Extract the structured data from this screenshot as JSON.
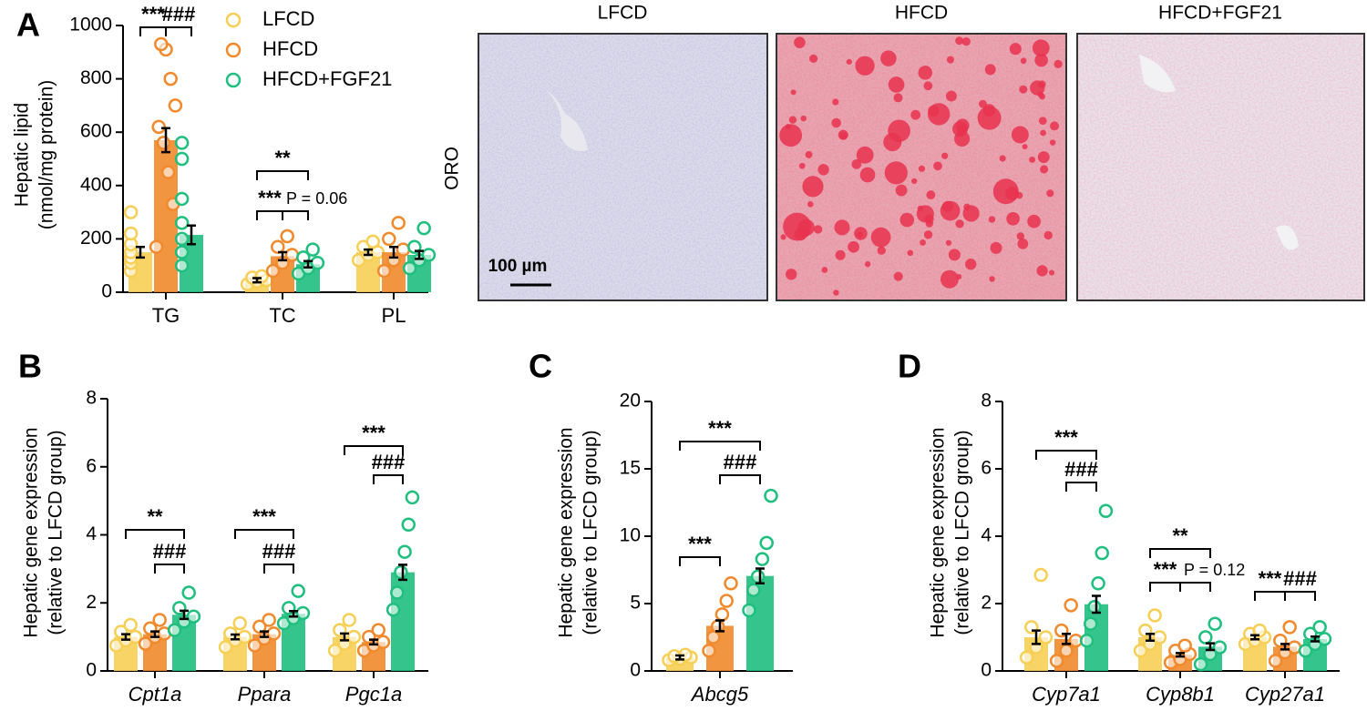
{
  "chart_data": [
    {
      "type": "bar",
      "panel": "A",
      "ylabel": [
        "Hepatic lipid",
        "(nmol/mg protein)"
      ],
      "categories": [
        "TG",
        "TC",
        "PL"
      ],
      "ylim": [
        0,
        1000
      ],
      "yticks": [
        0,
        200,
        400,
        600,
        800,
        1000
      ],
      "series": [
        {
          "name": "LFCD",
          "color": "#f7cf55",
          "values": [
            150,
            45,
            150
          ],
          "errors": [
            20,
            8,
            10
          ],
          "points": [
            [
              80,
              110,
              130,
              150,
              180,
              220,
              300
            ],
            [
              30,
              40,
              45,
              55,
              60
            ],
            [
              120,
              140,
              150,
              170,
              190
            ]
          ]
        },
        {
          "name": "HFCD",
          "color": "#f08a2c",
          "values": [
            570,
            135,
            150
          ],
          "errors": [
            45,
            15,
            20
          ],
          "points": [
            [
              170,
              330,
              450,
              560,
              620,
              700,
              800,
              910,
              930
            ],
            [
              80,
              110,
              140,
              170,
              210
            ],
            [
              80,
              120,
              160,
              200,
              260
            ]
          ]
        },
        {
          "name": "HFCD+FGF21",
          "color": "#1fbf7f",
          "values": [
            215,
            105,
            140
          ],
          "errors": [
            35,
            12,
            15
          ],
          "points": [
            [
              100,
              150,
              200,
              260,
              350,
              500,
              560
            ],
            [
              70,
              90,
              110,
              130,
              160
            ],
            [
              90,
              120,
              140,
              170,
              240
            ]
          ]
        }
      ],
      "annotations": [
        "***",
        "###",
        "**",
        "***",
        "P = 0.06"
      ],
      "legend": true
    },
    {
      "type": "bar",
      "panel": "B",
      "ylabel": [
        "Hepatic gene expression",
        "(relative to LFCD group)"
      ],
      "categories": [
        "Cpt1a",
        "Ppara",
        "Pgc1a"
      ],
      "ylim": [
        0,
        8
      ],
      "yticks": [
        0,
        2,
        4,
        6,
        8
      ],
      "series": [
        {
          "name": "LFCD",
          "color": "#f7cf55",
          "values": [
            1.0,
            1.0,
            1.0
          ],
          "errors": [
            0.08,
            0.07,
            0.1
          ],
          "points": [
            [
              0.75,
              0.9,
              1.0,
              1.15,
              1.35
            ],
            [
              0.7,
              0.9,
              1.0,
              1.1,
              1.4
            ],
            [
              0.6,
              0.8,
              1.0,
              1.2,
              1.5
            ]
          ]
        },
        {
          "name": "HFCD",
          "color": "#f08a2c",
          "values": [
            1.08,
            1.08,
            0.85
          ],
          "errors": [
            0.08,
            0.08,
            0.07
          ],
          "points": [
            [
              0.8,
              1.0,
              1.1,
              1.25,
              1.5
            ],
            [
              0.75,
              0.95,
              1.1,
              1.3,
              1.5
            ],
            [
              0.6,
              0.75,
              0.85,
              1.0,
              1.2
            ]
          ]
        },
        {
          "name": "HFCD+FGF21",
          "color": "#1fbf7f",
          "values": [
            1.65,
            1.68,
            2.9
          ],
          "errors": [
            0.12,
            0.08,
            0.22
          ],
          "points": [
            [
              1.2,
              1.45,
              1.6,
              1.85,
              2.3
            ],
            [
              1.4,
              1.55,
              1.7,
              1.85,
              2.35
            ],
            [
              1.8,
              2.3,
              2.9,
              3.5,
              4.3,
              5.1
            ]
          ]
        }
      ],
      "annotations": [
        "**",
        "###",
        "***",
        "###",
        "***",
        "###"
      ]
    },
    {
      "type": "bar",
      "panel": "C",
      "ylabel": [
        "Hepatic gene expression",
        "(relative to LFCD group)"
      ],
      "categories": [
        "Abcg5"
      ],
      "ylim": [
        0,
        20
      ],
      "yticks": [
        0,
        5,
        10,
        15,
        20
      ],
      "series": [
        {
          "name": "LFCD",
          "color": "#f7cf55",
          "values": [
            1.0
          ],
          "errors": [
            0.15
          ],
          "points": [
            [
              0.8,
              0.9,
              1.0,
              1.1,
              1.2
            ]
          ]
        },
        {
          "name": "HFCD",
          "color": "#f08a2c",
          "values": [
            3.35
          ],
          "errors": [
            0.4
          ],
          "points": [
            [
              1.5,
              2.5,
              3.3,
              4.2,
              5.2,
              6.5
            ]
          ]
        },
        {
          "name": "HFCD+FGF21",
          "color": "#1fbf7f",
          "values": [
            7.05
          ],
          "errors": [
            0.55
          ],
          "points": [
            [
              4.5,
              6.0,
              7.0,
              8.3,
              9.5,
              13.0
            ]
          ]
        }
      ],
      "annotations": [
        "***",
        "###",
        "***"
      ]
    },
    {
      "type": "bar",
      "panel": "D",
      "ylabel": [
        "Hepatic gene expression",
        "(relative to LFCD group)"
      ],
      "categories": [
        "Cyp7a1",
        "Cyp8b1",
        "Cyp27a1"
      ],
      "ylim": [
        0,
        8
      ],
      "yticks": [
        0,
        2,
        4,
        6,
        8
      ],
      "series": [
        {
          "name": "LFCD",
          "color": "#f7cf55",
          "values": [
            1.0,
            1.0,
            1.0
          ],
          "errors": [
            0.2,
            0.1,
            0.06
          ],
          "points": [
            [
              0.4,
              0.7,
              1.0,
              1.3,
              2.85
            ],
            [
              0.6,
              0.8,
              1.0,
              1.2,
              1.65
            ],
            [
              0.8,
              0.9,
              1.0,
              1.1,
              1.2
            ]
          ]
        },
        {
          "name": "HFCD",
          "color": "#f08a2c",
          "values": [
            0.95,
            0.48,
            0.72
          ],
          "errors": [
            0.15,
            0.05,
            0.08
          ],
          "points": [
            [
              0.3,
              0.6,
              0.9,
              1.2,
              1.95
            ],
            [
              0.25,
              0.35,
              0.5,
              0.6,
              0.75
            ],
            [
              0.3,
              0.55,
              0.7,
              0.9,
              1.3
            ]
          ]
        },
        {
          "name": "HFCD+FGF21",
          "color": "#1fbf7f",
          "values": [
            1.98,
            0.72,
            0.95
          ],
          "errors": [
            0.25,
            0.1,
            0.07
          ],
          "points": [
            [
              0.9,
              1.4,
              1.9,
              2.6,
              3.5,
              4.75
            ],
            [
              0.2,
              0.5,
              0.7,
              1.0,
              1.4
            ],
            [
              0.6,
              0.8,
              0.95,
              1.1,
              1.3
            ]
          ]
        }
      ],
      "annotations": [
        "***",
        "###",
        "**",
        "***",
        "P = 0.12",
        "***",
        "###"
      ]
    }
  ],
  "images": {
    "titles": [
      "LFCD",
      "HFCD",
      "HFCD+FGF21"
    ],
    "stain": "ORO",
    "scale_bar": "100 µm"
  }
}
